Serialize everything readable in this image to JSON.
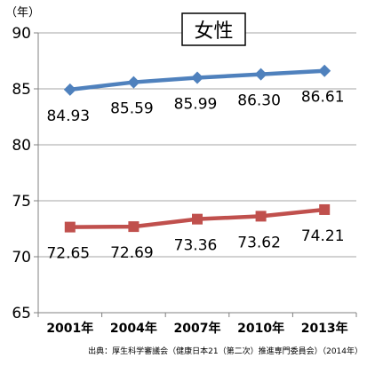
{
  "chart_data": {
    "type": "line",
    "title": "女性",
    "ylabel": "（年）",
    "xlabel": "",
    "categories": [
      "2001年",
      "2004年",
      "2007年",
      "2010年",
      "2013年"
    ],
    "ylim": [
      65,
      90
    ],
    "yticks": [
      65,
      70,
      75,
      80,
      85,
      90
    ],
    "grid": true,
    "series": [
      {
        "values": [
          84.93,
          85.59,
          85.99,
          86.3,
          86.61
        ],
        "labels": [
          "84.93",
          "85.59",
          "85.99",
          "86.30",
          "86.61"
        ],
        "color": "#4f81bd",
        "marker": "diamond"
      },
      {
        "values": [
          72.65,
          72.69,
          73.36,
          73.62,
          74.21
        ],
        "labels": [
          "72.65",
          "72.69",
          "73.36",
          "73.62",
          "74.21"
        ],
        "color": "#c0504d",
        "marker": "square"
      }
    ],
    "source": "出典：厚生科学審議会（健康日本21（第二次）推進専門委員会）（2014年）"
  }
}
